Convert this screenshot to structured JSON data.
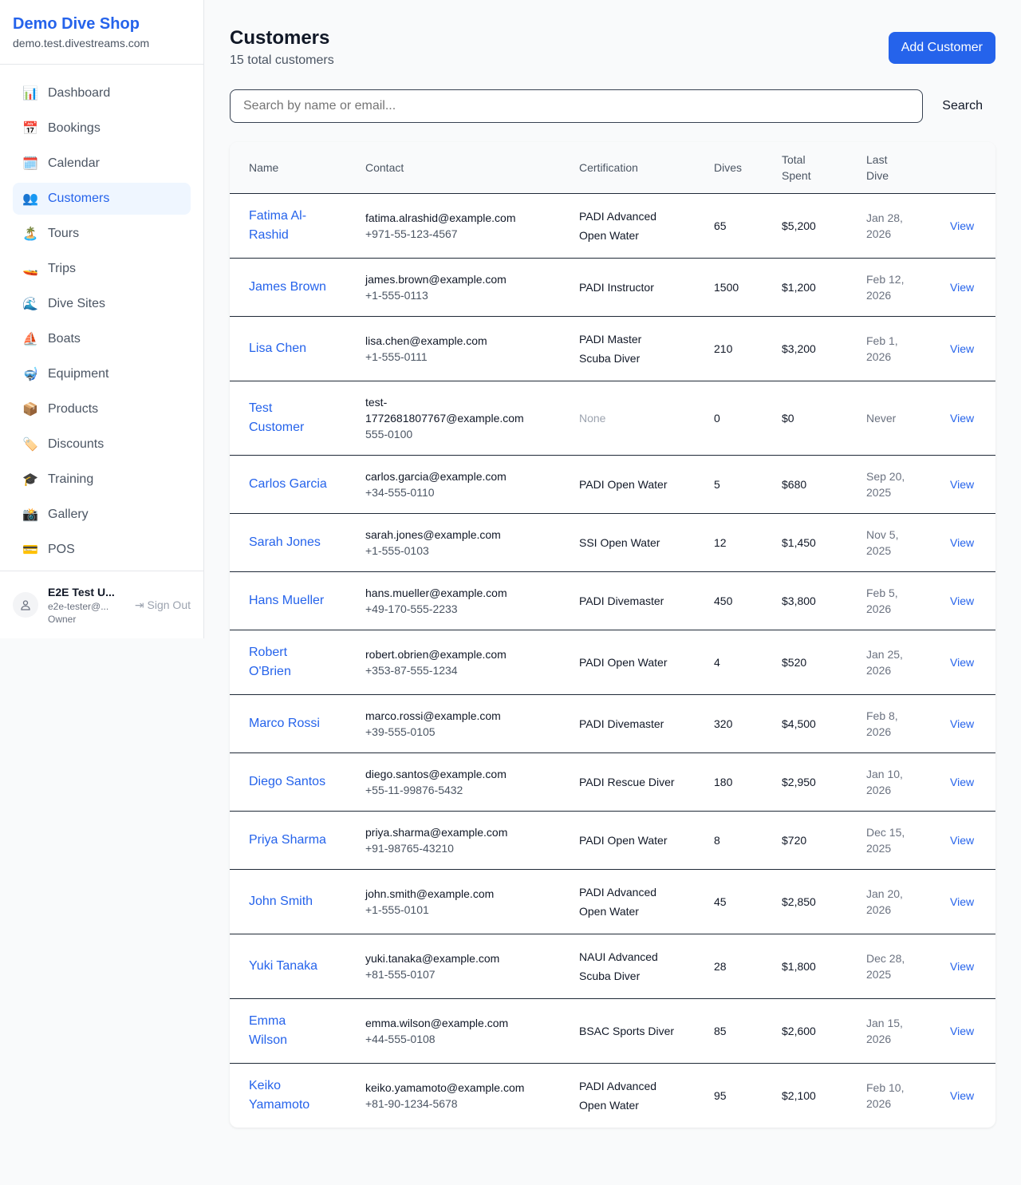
{
  "sidebar": {
    "shop_name": "Demo Dive Shop",
    "domain": "demo.test.divestreams.com",
    "items": [
      {
        "label": "Dashboard",
        "icon": "📊",
        "name": "bar-chart-icon"
      },
      {
        "label": "Bookings",
        "icon": "📅",
        "name": "calendar-date-icon"
      },
      {
        "label": "Calendar",
        "icon": "🗓️",
        "name": "calendar-icon"
      },
      {
        "label": "Customers",
        "icon": "👥",
        "name": "users-icon",
        "active": true
      },
      {
        "label": "Tours",
        "icon": "🏝️",
        "name": "island-icon"
      },
      {
        "label": "Trips",
        "icon": "🚤",
        "name": "speedboat-icon"
      },
      {
        "label": "Dive Sites",
        "icon": "🌊",
        "name": "wave-icon"
      },
      {
        "label": "Boats",
        "icon": "⛵",
        "name": "sailboat-icon"
      },
      {
        "label": "Equipment",
        "icon": "🤿",
        "name": "diving-mask-icon"
      },
      {
        "label": "Products",
        "icon": "📦",
        "name": "package-icon"
      },
      {
        "label": "Discounts",
        "icon": "🏷️",
        "name": "tag-icon"
      },
      {
        "label": "Training",
        "icon": "🎓",
        "name": "graduation-cap-icon"
      },
      {
        "label": "Gallery",
        "icon": "📸",
        "name": "camera-icon"
      },
      {
        "label": "POS",
        "icon": "💳",
        "name": "credit-card-icon"
      }
    ],
    "user": {
      "name": "E2E Test U...",
      "email": "e2e-tester@...",
      "role": "Owner",
      "sign_out": "Sign Out"
    }
  },
  "header": {
    "title": "Customers",
    "subtitle": "15 total customers",
    "add_button": "Add Customer"
  },
  "search": {
    "placeholder": "Search by name or email...",
    "value": "",
    "button": "Search"
  },
  "table": {
    "columns": [
      "Name",
      "Contact",
      "Certification",
      "Dives",
      "Total Spent",
      "Last Dive",
      ""
    ],
    "rows": [
      {
        "name": "Fatima Al-Rashid",
        "email": "fatima.alrashid@example.com",
        "phone": "+971-55-123-4567",
        "cert": "PADI Advanced Open Water",
        "dives": "65",
        "spent": "$5,200",
        "last": "Jan 28, 2026",
        "action": "View"
      },
      {
        "name": "James Brown",
        "email": "james.brown@example.com",
        "phone": "+1-555-0113",
        "cert": "PADI Instructor",
        "dives": "1500",
        "spent": "$1,200",
        "last": "Feb 12, 2026",
        "action": "View"
      },
      {
        "name": "Lisa Chen",
        "email": "lisa.chen@example.com",
        "phone": "+1-555-0111",
        "cert": "PADI Master Scuba Diver",
        "dives": "210",
        "spent": "$3,200",
        "last": "Feb 1, 2026",
        "action": "View"
      },
      {
        "name": "Test Customer",
        "email": "test-1772681807767@example.com",
        "phone": "555-0100",
        "cert": "None",
        "dives": "0",
        "spent": "$0",
        "last": "Never",
        "action": "View"
      },
      {
        "name": "Carlos Garcia",
        "email": "carlos.garcia@example.com",
        "phone": "+34-555-0110",
        "cert": "PADI Open Water",
        "dives": "5",
        "spent": "$680",
        "last": "Sep 20, 2025",
        "action": "View"
      },
      {
        "name": "Sarah Jones",
        "email": "sarah.jones@example.com",
        "phone": "+1-555-0103",
        "cert": "SSI Open Water",
        "dives": "12",
        "spent": "$1,450",
        "last": "Nov 5, 2025",
        "action": "View"
      },
      {
        "name": "Hans Mueller",
        "email": "hans.mueller@example.com",
        "phone": "+49-170-555-2233",
        "cert": "PADI Divemaster",
        "dives": "450",
        "spent": "$3,800",
        "last": "Feb 5, 2026",
        "action": "View"
      },
      {
        "name": "Robert O'Brien",
        "email": "robert.obrien@example.com",
        "phone": "+353-87-555-1234",
        "cert": "PADI Open Water",
        "dives": "4",
        "spent": "$520",
        "last": "Jan 25, 2026",
        "action": "View"
      },
      {
        "name": "Marco Rossi",
        "email": "marco.rossi@example.com",
        "phone": "+39-555-0105",
        "cert": "PADI Divemaster",
        "dives": "320",
        "spent": "$4,500",
        "last": "Feb 8, 2026",
        "action": "View"
      },
      {
        "name": "Diego Santos",
        "email": "diego.santos@example.com",
        "phone": "+55-11-99876-5432",
        "cert": "PADI Rescue Diver",
        "dives": "180",
        "spent": "$2,950",
        "last": "Jan 10, 2026",
        "action": "View"
      },
      {
        "name": "Priya Sharma",
        "email": "priya.sharma@example.com",
        "phone": "+91-98765-43210",
        "cert": "PADI Open Water",
        "dives": "8",
        "spent": "$720",
        "last": "Dec 15, 2025",
        "action": "View"
      },
      {
        "name": "John Smith",
        "email": "john.smith@example.com",
        "phone": "+1-555-0101",
        "cert": "PADI Advanced Open Water",
        "dives": "45",
        "spent": "$2,850",
        "last": "Jan 20, 2026",
        "action": "View"
      },
      {
        "name": "Yuki Tanaka",
        "email": "yuki.tanaka@example.com",
        "phone": "+81-555-0107",
        "cert": "NAUI Advanced Scuba Diver",
        "dives": "28",
        "spent": "$1,800",
        "last": "Dec 28, 2025",
        "action": "View"
      },
      {
        "name": "Emma Wilson",
        "email": "emma.wilson@example.com",
        "phone": "+44-555-0108",
        "cert": "BSAC Sports Diver",
        "dives": "85",
        "spent": "$2,600",
        "last": "Jan 15, 2026",
        "action": "View"
      },
      {
        "name": "Keiko Yamamoto",
        "email": "keiko.yamamoto@example.com",
        "phone": "+81-90-1234-5678",
        "cert": "PADI Advanced Open Water",
        "dives": "95",
        "spent": "$2,100",
        "last": "Feb 10, 2026",
        "action": "View"
      }
    ]
  }
}
